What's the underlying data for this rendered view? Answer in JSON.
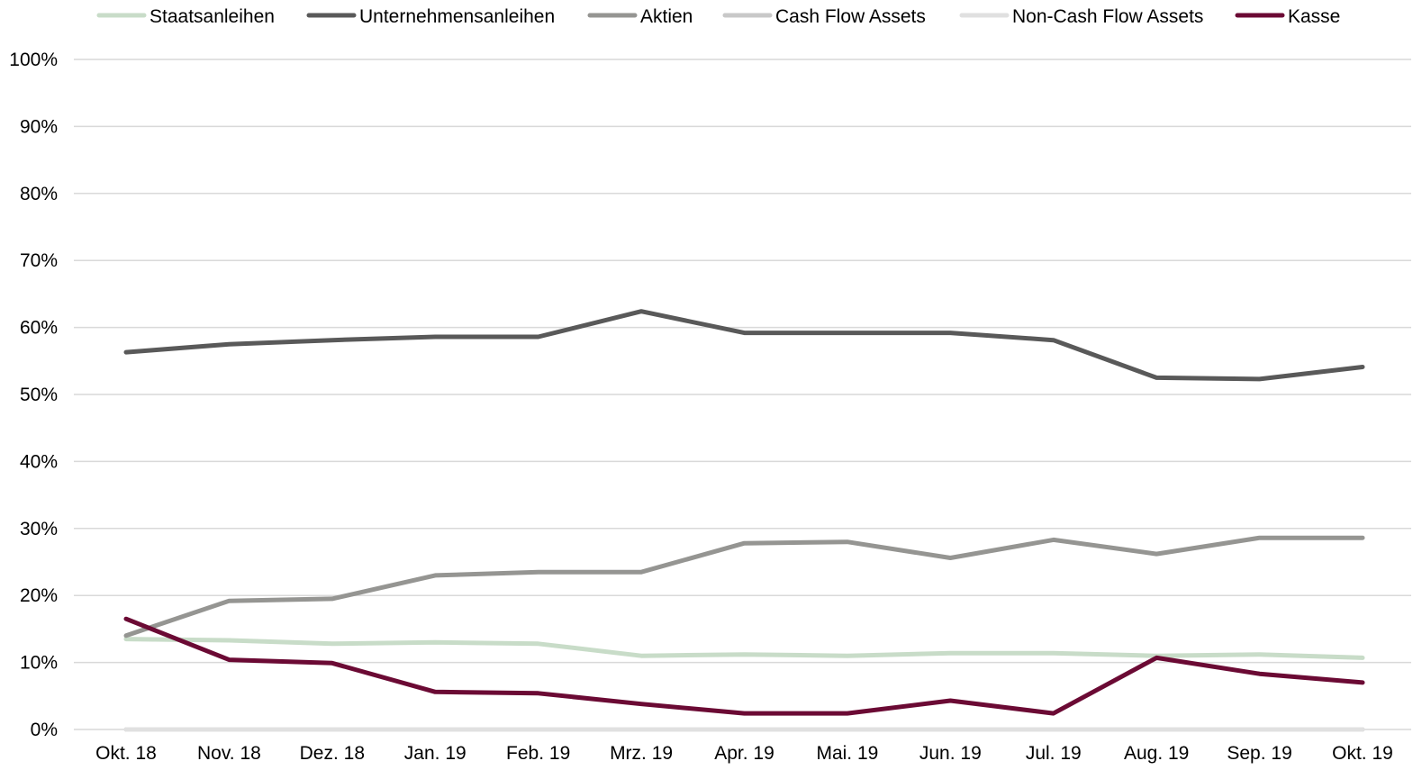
{
  "chart_data": {
    "type": "line",
    "title": "",
    "xlabel": "",
    "ylabel": "",
    "categories": [
      "Okt. 18",
      "Nov. 18",
      "Dez. 18",
      "Jan. 19",
      "Feb. 19",
      "Mrz. 19",
      "Apr. 19",
      "Mai. 19",
      "Jun. 19",
      "Jul. 19",
      "Aug. 19",
      "Sep. 19",
      "Okt. 19"
    ],
    "y_ticks": [
      0,
      10,
      20,
      30,
      40,
      50,
      60,
      70,
      80,
      90,
      100
    ],
    "y_tick_labels": [
      "0%",
      "10%",
      "20%",
      "30%",
      "40%",
      "50%",
      "60%",
      "70%",
      "80%",
      "90%",
      "100%"
    ],
    "ylim": [
      0,
      100
    ],
    "y_unit": "%",
    "grid": true,
    "legend_position": "top",
    "series": [
      {
        "name": "Staatsanleihen",
        "color": "#c8dcc8",
        "values": [
          13.5,
          13.3,
          12.8,
          13.0,
          12.8,
          11.0,
          11.2,
          11.0,
          11.4,
          11.4,
          11.0,
          11.2,
          10.7
        ]
      },
      {
        "name": "Unternehmensanleihen",
        "color": "#595959",
        "values": [
          56.3,
          57.5,
          58.1,
          58.6,
          58.6,
          62.4,
          59.2,
          59.2,
          59.2,
          58.1,
          52.5,
          52.3,
          54.1
        ]
      },
      {
        "name": "Aktien",
        "color": "#959592",
        "values": [
          14.0,
          19.2,
          19.5,
          23.0,
          23.5,
          23.5,
          27.8,
          28.0,
          25.6,
          28.3,
          26.2,
          28.6,
          28.6
        ]
      },
      {
        "name": "Cash Flow Assets",
        "color": "#c8c8c8",
        "values": [
          0,
          0,
          0,
          0,
          0,
          0,
          0,
          0,
          0,
          0,
          0,
          0,
          0
        ]
      },
      {
        "name": "Non-Cash Flow Assets",
        "color": "#e0e0e0",
        "values": [
          0,
          0,
          0,
          0,
          0,
          0,
          0,
          0,
          0,
          0,
          0,
          0,
          0
        ]
      },
      {
        "name": "Kasse",
        "color": "#6b0a34",
        "values": [
          16.5,
          10.4,
          9.9,
          5.6,
          5.4,
          3.8,
          2.4,
          2.4,
          4.3,
          2.4,
          10.7,
          8.3,
          7.0
        ]
      }
    ]
  }
}
